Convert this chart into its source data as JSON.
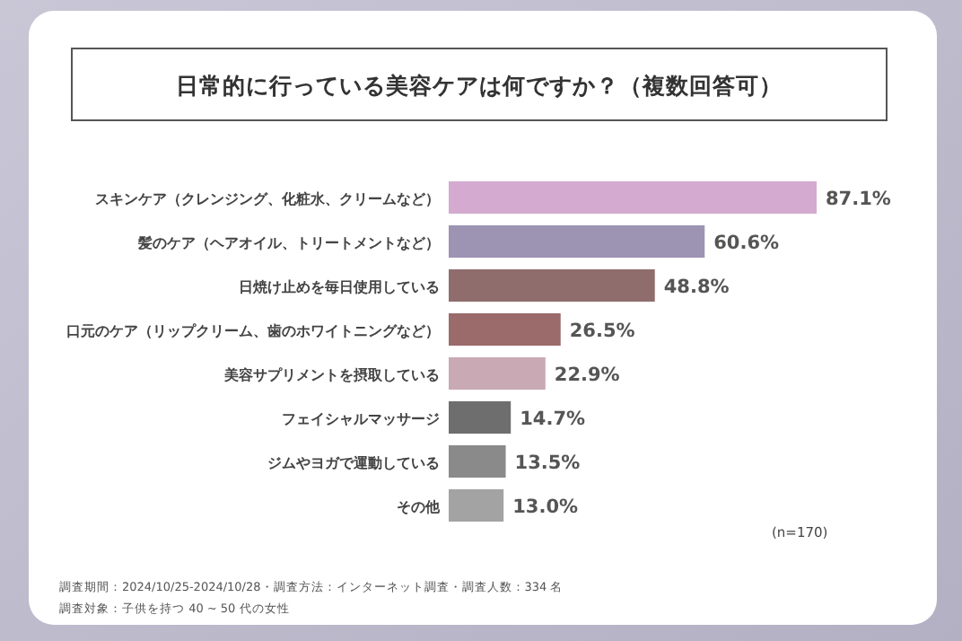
{
  "chart_data": {
    "type": "bar",
    "orientation": "horizontal",
    "title": "日常的に行っている美容ケアは何ですか？（複数回答可）",
    "categories": [
      "スキンケア（クレンジング、化粧水、クリームなど）",
      "髪のケア（ヘアオイル、トリートメントなど）",
      "日焼け止めを毎日使用している",
      "口元のケア（リップクリーム、歯のホワイトニングなど）",
      "美容サプリメントを摂取している",
      "フェイシャルマッサージ",
      "ジムやヨガで運動している",
      "その他"
    ],
    "values": [
      87.1,
      60.6,
      48.8,
      26.5,
      22.9,
      14.7,
      13.5,
      13.0
    ],
    "value_labels": [
      "87.1%",
      "60.6%",
      "48.8%",
      "26.5%",
      "22.9%",
      "14.7%",
      "13.5%",
      "13.0%"
    ],
    "colors": [
      "#d4aad0",
      "#9d93b3",
      "#8f6d6d",
      "#9b6a6a",
      "#c9a9b3",
      "#6e6e6e",
      "#8a8a8a",
      "#a3a3a3"
    ],
    "annotations": [
      "(n=170)",
      "調査期間：2024/10/25-2024/10/28・調査方法：インターネット調査・調査人数：334 名",
      "調査対象：子供を持つ 40 ~ 50 代の女性"
    ]
  }
}
